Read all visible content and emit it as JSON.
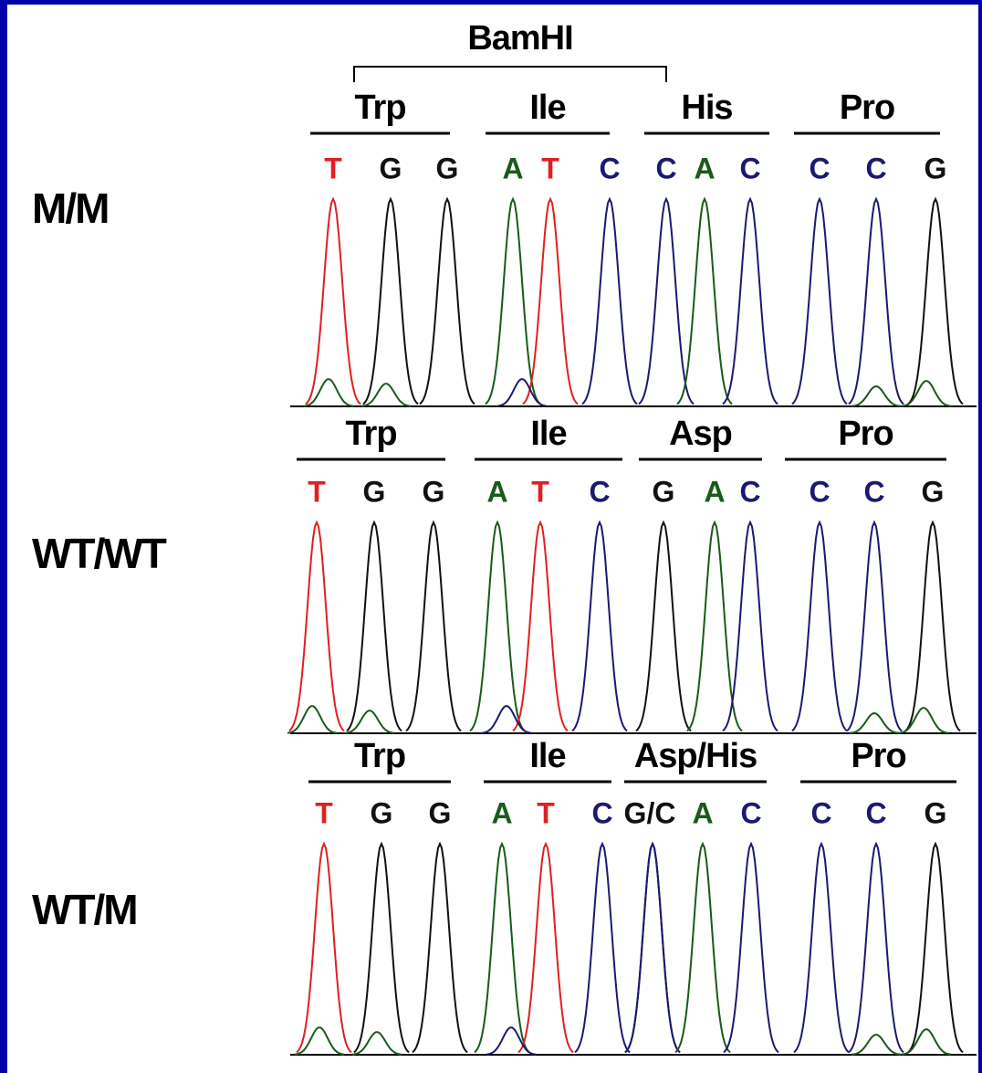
{
  "title": "BamHI",
  "panels": [
    {
      "genotype": "M/M",
      "codons": [
        "Trp",
        "Ile",
        "His",
        "Pro"
      ],
      "bases": [
        "T",
        "G",
        "G",
        "A",
        "T",
        "C",
        "C",
        "A",
        "C",
        "C",
        "C",
        "G"
      ]
    },
    {
      "genotype": "WT/WT",
      "codons": [
        "Trp",
        "Ile",
        "Asp",
        "Pro"
      ],
      "bases": [
        "T",
        "G",
        "G",
        "A",
        "T",
        "C",
        "G",
        "A",
        "C",
        "C",
        "C",
        "G"
      ]
    },
    {
      "genotype": "WT/M",
      "codons": [
        "Trp",
        "Ile",
        "Asp/His",
        "Pro"
      ],
      "bases": [
        "T",
        "G",
        "G",
        "A",
        "T",
        "C",
        "G/C",
        "A",
        "C",
        "C",
        "C",
        "G"
      ]
    }
  ]
}
